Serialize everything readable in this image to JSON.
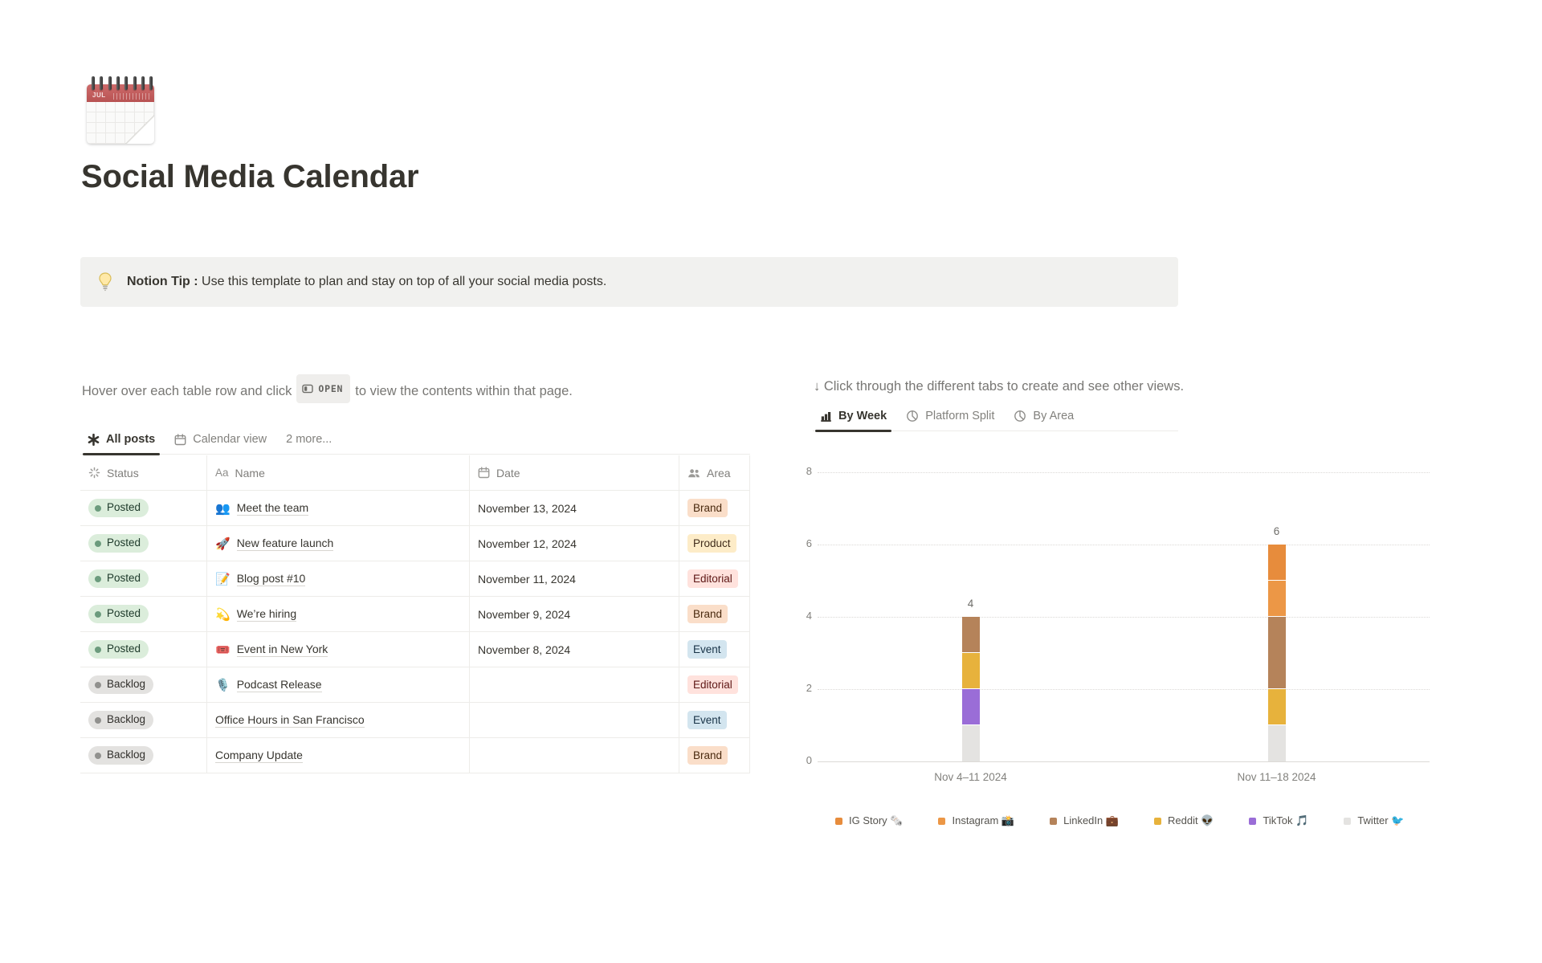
{
  "page": {
    "title": "Social Media Calendar",
    "icon": {
      "name": "spiral-calendar",
      "month_label": "JUL"
    }
  },
  "callout": {
    "icon": "light-bulb",
    "bold_label": "Notion Tip :",
    "text": " Use this template to plan and stay on top of all your social media posts."
  },
  "left_panel": {
    "instruction_prefix": "Hover over each table row and click",
    "open_button_label": "OPEN",
    "instruction_suffix": "to view the contents within that page.",
    "tabs": [
      {
        "label": "All posts",
        "icon": "asterisk-icon",
        "active": true
      },
      {
        "label": "Calendar view",
        "icon": "calendar-icon",
        "active": false
      },
      {
        "label": "2 more...",
        "icon": null,
        "active": false
      }
    ],
    "table": {
      "columns": [
        {
          "label": "Status",
          "icon": "status-spinner-icon"
        },
        {
          "label": "Name",
          "icon": "aa-icon"
        },
        {
          "label": "Date",
          "icon": "calendar-icon"
        },
        {
          "label": "Area",
          "icon": "people-icon"
        }
      ],
      "rows": [
        {
          "status": "Posted",
          "emoji": "👥",
          "name": "Meet the team",
          "date": "November 13, 2024",
          "area": "Brand"
        },
        {
          "status": "Posted",
          "emoji": "🚀",
          "name": "New feature launch",
          "date": "November 12, 2024",
          "area": "Product"
        },
        {
          "status": "Posted",
          "emoji": "📝",
          "name": "Blog post #10",
          "date": "November 11, 2024",
          "area": "Editorial"
        },
        {
          "status": "Posted",
          "emoji": "💫",
          "name": "We’re hiring",
          "date": "November 9, 2024",
          "area": "Brand"
        },
        {
          "status": "Posted",
          "emoji": "🎟️",
          "name": "Event in New York",
          "date": "November 8, 2024",
          "area": "Event"
        },
        {
          "status": "Backlog",
          "emoji": "🎙️",
          "name": "Podcast Release",
          "date": "",
          "area": "Editorial"
        },
        {
          "status": "Backlog",
          "emoji": "",
          "name": "Office Hours in San Francisco",
          "date": "",
          "area": "Event"
        },
        {
          "status": "Backlog",
          "emoji": "",
          "name": "Company Update",
          "date": "",
          "area": "Brand"
        }
      ]
    }
  },
  "right_panel": {
    "instruction": "↓ Click through the different tabs to create and see other views.",
    "tabs": [
      {
        "label": "By Week",
        "icon": "bar-chart-icon",
        "active": true
      },
      {
        "label": "Platform Split",
        "icon": "pie-chart-icon",
        "active": false
      },
      {
        "label": "By Area",
        "icon": "pie-chart-icon",
        "active": false
      }
    ]
  },
  "chart_data": {
    "type": "bar",
    "stacked": true,
    "categories": [
      "Nov 4–11 2024",
      "Nov 11–18 2024"
    ],
    "series": [
      {
        "name": "IG Story 🗞️",
        "color": "#E78C3C",
        "values": [
          0,
          1
        ]
      },
      {
        "name": "Instagram 📸",
        "color": "#EC9746",
        "values": [
          0,
          1
        ]
      },
      {
        "name": "LinkedIn 💼",
        "color": "#B5835A",
        "values": [
          1,
          2
        ]
      },
      {
        "name": "Reddit 👽",
        "color": "#E7B23C",
        "values": [
          1,
          1
        ]
      },
      {
        "name": "TikTok 🎵",
        "color": "#9A6DD7",
        "values": [
          1,
          0
        ]
      },
      {
        "name": "Twitter 🐦",
        "color": "#E4E3E1",
        "values": [
          1,
          1
        ]
      }
    ],
    "totals": [
      4,
      6
    ],
    "title": "",
    "xlabel": "",
    "ylabel": "",
    "ylim": [
      0,
      8
    ],
    "yticks": [
      0,
      2,
      4,
      6,
      8
    ],
    "grid": "dotted-horizontal",
    "legend_position": "bottom"
  },
  "colors": {
    "text_primary": "#37352F",
    "text_secondary": "#787774",
    "callout_bg": "#F1F1EF",
    "border": "#EDECE9",
    "active_tab_underline": "#37352F",
    "status": {
      "Posted": {
        "bg": "#DBEDDB",
        "dot": "#6C9B7D",
        "text": "#1C3829"
      },
      "Backlog": {
        "bg": "#E3E2E0",
        "dot": "#91918E",
        "text": "#32302C"
      }
    },
    "area": {
      "Brand": {
        "bg": "#FADEC9",
        "text": "#49290E"
      },
      "Product": {
        "bg": "#FDECC8",
        "text": "#402C1B"
      },
      "Editorial": {
        "bg": "#FFE2DD",
        "text": "#5D1715"
      },
      "Event": {
        "bg": "#D3E5EF",
        "text": "#183347"
      }
    }
  }
}
